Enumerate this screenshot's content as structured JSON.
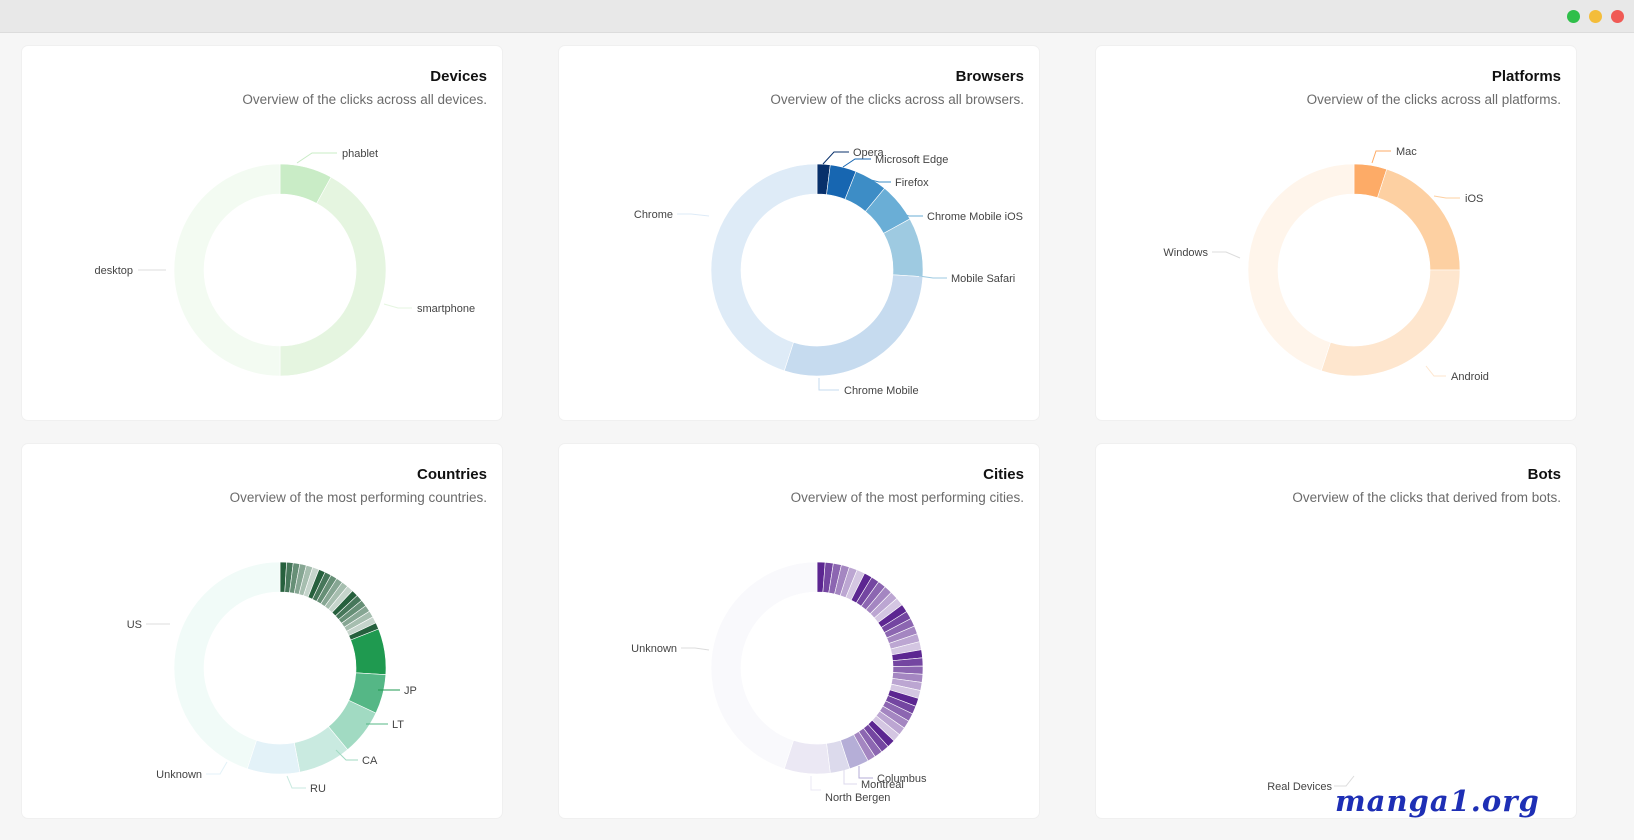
{
  "window": {
    "controls": [
      "close",
      "minimize",
      "maximize"
    ]
  },
  "cards": {
    "devices": {
      "title": "Devices",
      "subtitle": "Overview of the clicks across all devices.",
      "chart_data": {
        "type": "pie",
        "categories": [
          "phablet",
          "smartphone",
          "desktop"
        ],
        "values": [
          8,
          42,
          50
        ],
        "colors": [
          "#c9ecc6",
          "#e5f5e0",
          "#f3fbf2"
        ]
      }
    },
    "browsers": {
      "title": "Browsers",
      "subtitle": "Overview of the clicks across all browsers.",
      "chart_data": {
        "type": "pie",
        "categories": [
          "Opera",
          "Microsoft Edge",
          "Firefox",
          "Chrome Mobile iOS",
          "Mobile Safari",
          "Chrome Mobile",
          "Chrome"
        ],
        "values": [
          2,
          4,
          5,
          6,
          9,
          29,
          45
        ],
        "colors": [
          "#08306b",
          "#1766b1",
          "#3d8dc6",
          "#6aaed6",
          "#9ecae1",
          "#c6dbef",
          "#deebf7",
          "#f4f9ff"
        ]
      }
    },
    "platforms": {
      "title": "Platforms",
      "subtitle": "Overview of the clicks across all platforms.",
      "chart_data": {
        "type": "pie",
        "categories": [
          "Mac",
          "iOS",
          "Android",
          "Windows"
        ],
        "values": [
          5,
          20,
          30,
          45
        ],
        "colors": [
          "#fdab67",
          "#fdd0a2",
          "#fee6ce",
          "#fff5eb"
        ]
      }
    },
    "countries": {
      "title": "Countries",
      "subtitle": "Overview of the most performing countries.",
      "chart_data": {
        "type": "pie",
        "categories": [
          "JP",
          "LT",
          "CA",
          "RU",
          "Unknown",
          "US"
        ],
        "values": [
          7,
          6,
          7,
          8,
          8,
          45
        ],
        "colors": [
          "#1f9a50",
          "#55b786",
          "#a1dac2",
          "#c9eae0",
          "#e3f2f8",
          "#f1fbf8"
        ],
        "minor_slices": 19,
        "minor_value": 19
      }
    },
    "cities": {
      "title": "Cities",
      "subtitle": "Overview of the most performing cities.",
      "chart_data": {
        "type": "pie",
        "categories": [
          "Columbus",
          "Montreal",
          "North Bergen",
          "Unknown"
        ],
        "values": [
          3,
          3,
          7,
          45
        ],
        "colors": [
          "#b5aed7",
          "#dcdaec",
          "#ebe8f4",
          "#f9f9fc"
        ],
        "minor_slices": 34,
        "minor_value": 42
      }
    },
    "bots": {
      "title": "Bots",
      "subtitle": "Overview of the clicks that derived from bots.",
      "chart_data": {
        "type": "pie",
        "categories": [
          "Real Devices"
        ],
        "values": [
          100
        ],
        "colors": [
          "#fff5ef"
        ]
      }
    }
  },
  "watermark": "manga1.org"
}
